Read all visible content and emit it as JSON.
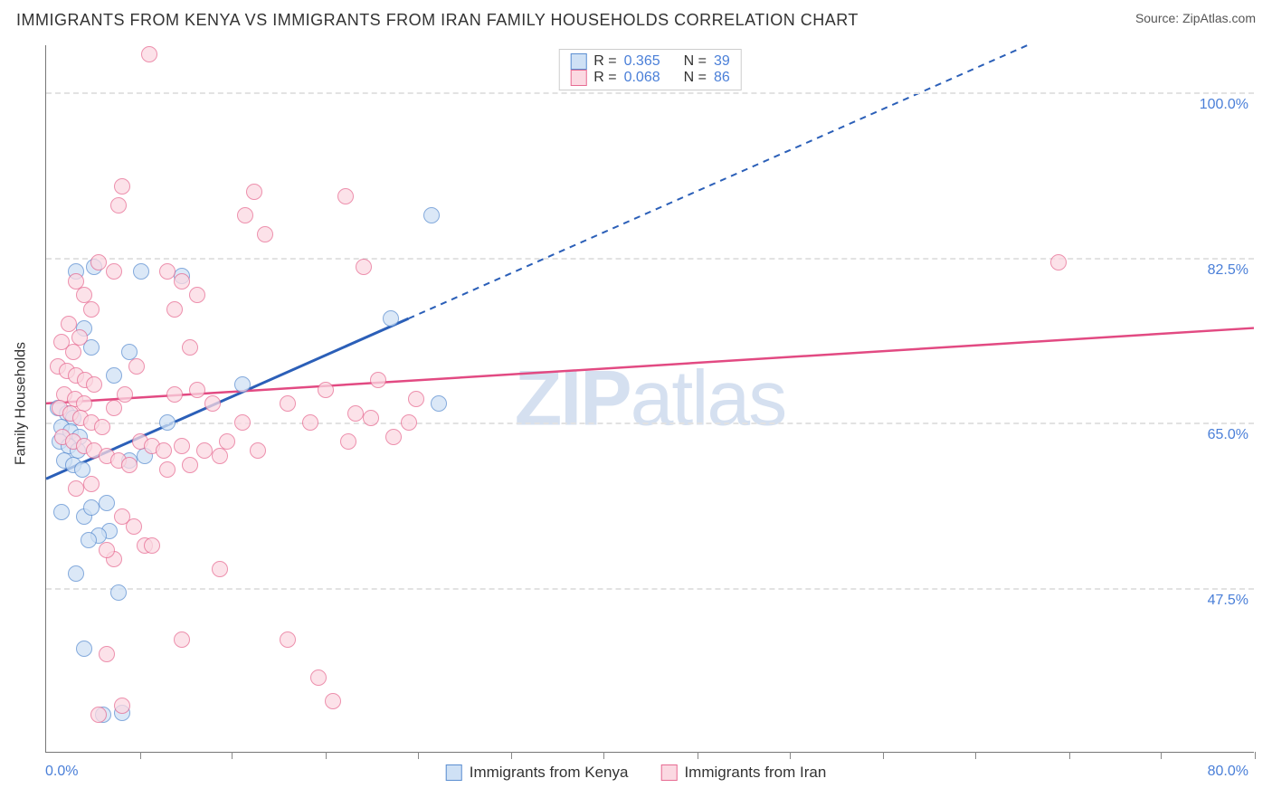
{
  "title": "IMMIGRANTS FROM KENYA VS IMMIGRANTS FROM IRAN FAMILY HOUSEHOLDS CORRELATION CHART",
  "source_label": "Source: ZipAtlas.com",
  "watermark_bold": "ZIP",
  "watermark_light": "atlas",
  "ylabel": "Family Households",
  "chart": {
    "type": "scatter",
    "xlim": [
      0,
      80
    ],
    "ylim": [
      30,
      105
    ],
    "x_axis_min_label": "0.0%",
    "x_axis_max_label": "80.0%",
    "y_ticks": [
      {
        "v": 47.5,
        "label": "47.5%"
      },
      {
        "v": 65.0,
        "label": "65.0%"
      },
      {
        "v": 82.5,
        "label": "82.5%"
      },
      {
        "v": 100.0,
        "label": "100.0%"
      }
    ],
    "x_tick_positions": [
      6.2,
      12.3,
      18.5,
      24.6,
      30.8,
      36.9,
      43.1,
      49.2,
      55.4,
      61.5,
      67.7,
      73.8,
      80.0
    ],
    "marker_radius": 9,
    "marker_stroke_width": 1.4,
    "background_color": "#ffffff",
    "grid_color": "#e2e2e2",
    "series": [
      {
        "key": "kenya",
        "label": "Immigrants from Kenya",
        "fill": "#cfe1f5",
        "stroke": "#5b8ed1",
        "fill_opacity": 0.75,
        "trend": {
          "color": "#2b5fb8",
          "width": 3,
          "x1": 0,
          "y1": 59,
          "x2_solid": 24,
          "y2_solid": 76,
          "x2_dash": 65,
          "y2_dash": 105
        },
        "stats": {
          "R": "0.365",
          "N": "39"
        },
        "points": [
          [
            2.0,
            81.0
          ],
          [
            3.2,
            81.5
          ],
          [
            6.3,
            81.0
          ],
          [
            0.8,
            66.5
          ],
          [
            1.4,
            66.0
          ],
          [
            1.8,
            65.5
          ],
          [
            1.0,
            64.5
          ],
          [
            1.6,
            64.0
          ],
          [
            2.2,
            63.5
          ],
          [
            0.9,
            63.0
          ],
          [
            1.5,
            62.5
          ],
          [
            2.1,
            62.0
          ],
          [
            1.2,
            61.0
          ],
          [
            1.8,
            60.5
          ],
          [
            2.4,
            60.0
          ],
          [
            1.0,
            55.5
          ],
          [
            2.5,
            55.0
          ],
          [
            3.0,
            56.0
          ],
          [
            4.0,
            56.5
          ],
          [
            5.5,
            61.0
          ],
          [
            6.5,
            61.5
          ],
          [
            4.2,
            53.5
          ],
          [
            3.5,
            53.0
          ],
          [
            2.8,
            52.5
          ],
          [
            2.0,
            49.0
          ],
          [
            4.8,
            47.0
          ],
          [
            2.5,
            41.0
          ],
          [
            3.8,
            34.0
          ],
          [
            5.0,
            34.2
          ],
          [
            13.0,
            69.0
          ],
          [
            22.8,
            76.0
          ],
          [
            25.5,
            87.0
          ],
          [
            8.0,
            65.0
          ],
          [
            9.0,
            80.5
          ],
          [
            4.5,
            70.0
          ],
          [
            5.5,
            72.5
          ],
          [
            3.0,
            73.0
          ],
          [
            2.5,
            75.0
          ],
          [
            26.0,
            67.0
          ]
        ]
      },
      {
        "key": "iran",
        "label": "Immigrants from Iran",
        "fill": "#fbd9e2",
        "stroke": "#e76b92",
        "fill_opacity": 0.75,
        "trend": {
          "color": "#e24a82",
          "width": 2.5,
          "x1": 0,
          "y1": 67,
          "x2": 80,
          "y2": 75
        },
        "stats": {
          "R": "0.068",
          "N": "86"
        },
        "points": [
          [
            6.8,
            104.0
          ],
          [
            5.0,
            90.0
          ],
          [
            4.8,
            88.0
          ],
          [
            3.5,
            82.0
          ],
          [
            4.5,
            81.0
          ],
          [
            13.8,
            89.5
          ],
          [
            13.2,
            87.0
          ],
          [
            14.5,
            85.0
          ],
          [
            19.8,
            89.0
          ],
          [
            21.0,
            81.5
          ],
          [
            8.0,
            81.0
          ],
          [
            9.0,
            80.0
          ],
          [
            10.0,
            78.5
          ],
          [
            8.5,
            77.0
          ],
          [
            9.5,
            73.0
          ],
          [
            2.0,
            80.0
          ],
          [
            2.5,
            78.5
          ],
          [
            3.0,
            77.0
          ],
          [
            1.5,
            75.5
          ],
          [
            2.2,
            74.0
          ],
          [
            1.0,
            73.5
          ],
          [
            1.8,
            72.5
          ],
          [
            0.8,
            71.0
          ],
          [
            1.4,
            70.5
          ],
          [
            2.0,
            70.0
          ],
          [
            2.6,
            69.5
          ],
          [
            3.2,
            69.0
          ],
          [
            1.2,
            68.0
          ],
          [
            1.9,
            67.5
          ],
          [
            2.5,
            67.0
          ],
          [
            0.9,
            66.5
          ],
          [
            1.6,
            66.0
          ],
          [
            2.3,
            65.5
          ],
          [
            3.0,
            65.0
          ],
          [
            3.7,
            64.5
          ],
          [
            1.1,
            63.5
          ],
          [
            1.8,
            63.0
          ],
          [
            2.5,
            62.5
          ],
          [
            3.2,
            62.0
          ],
          [
            4.0,
            61.5
          ],
          [
            4.8,
            61.0
          ],
          [
            5.5,
            60.5
          ],
          [
            6.2,
            63.0
          ],
          [
            7.0,
            62.5
          ],
          [
            7.8,
            62.0
          ],
          [
            8.5,
            68.0
          ],
          [
            5.0,
            55.0
          ],
          [
            5.8,
            54.0
          ],
          [
            6.5,
            52.0
          ],
          [
            10.0,
            68.5
          ],
          [
            11.0,
            67.0
          ],
          [
            12.0,
            63.0
          ],
          [
            13.0,
            65.0
          ],
          [
            14.0,
            62.0
          ],
          [
            9.0,
            62.5
          ],
          [
            10.5,
            62.0
          ],
          [
            11.5,
            61.5
          ],
          [
            8.0,
            60.0
          ],
          [
            9.5,
            60.5
          ],
          [
            4.5,
            50.5
          ],
          [
            4.0,
            51.5
          ],
          [
            7.0,
            52.0
          ],
          [
            11.5,
            49.5
          ],
          [
            16.0,
            67.0
          ],
          [
            17.5,
            65.0
          ],
          [
            18.5,
            68.5
          ],
          [
            20.0,
            63.0
          ],
          [
            20.5,
            66.0
          ],
          [
            22.0,
            69.5
          ],
          [
            21.5,
            65.5
          ],
          [
            23.0,
            63.5
          ],
          [
            24.5,
            67.5
          ],
          [
            24.0,
            65.0
          ],
          [
            9.0,
            42.0
          ],
          [
            4.0,
            40.5
          ],
          [
            16.0,
            42.0
          ],
          [
            19.0,
            35.5
          ],
          [
            18.0,
            38.0
          ],
          [
            3.5,
            34.0
          ],
          [
            5.0,
            35.0
          ],
          [
            67.0,
            82.0
          ],
          [
            2.0,
            58.0
          ],
          [
            3.0,
            58.5
          ],
          [
            4.5,
            66.5
          ],
          [
            5.2,
            68.0
          ],
          [
            6.0,
            71.0
          ]
        ]
      }
    ]
  },
  "legend_top_rows": [
    {
      "series": "kenya",
      "r_label": "R =",
      "n_label": "N ="
    },
    {
      "series": "iran",
      "r_label": "R =",
      "n_label": "N ="
    }
  ]
}
